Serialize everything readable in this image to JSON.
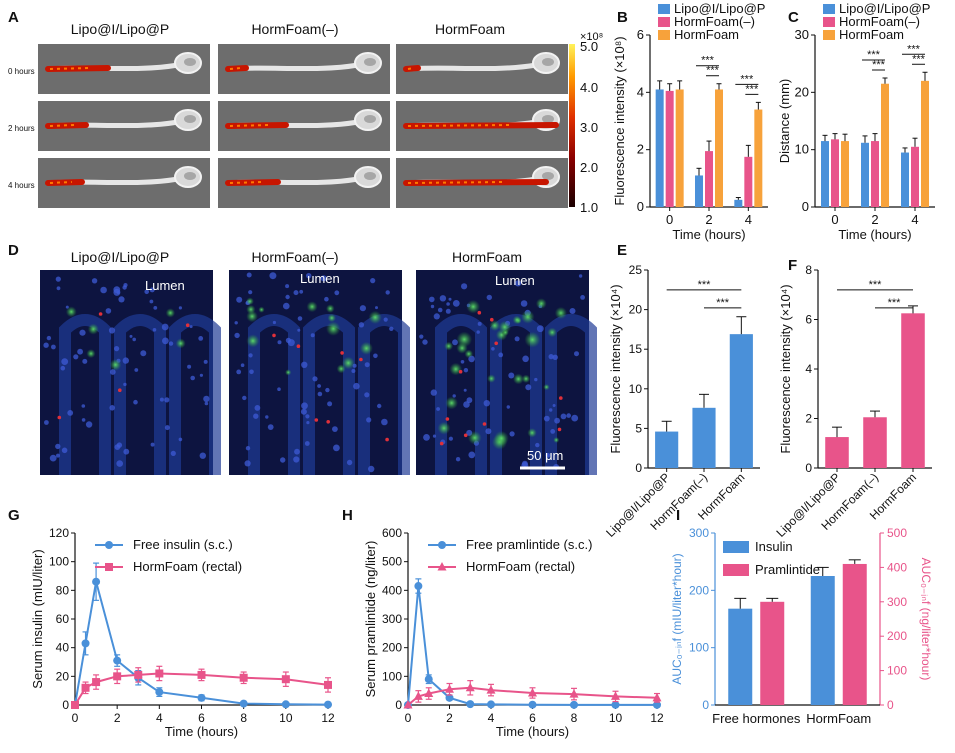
{
  "colors": {
    "blue": "#4a90d9",
    "pink": "#e8548a",
    "orange": "#f7a23b",
    "tissue": "#1f3b96",
    "axis": "#111111"
  },
  "panelA": {
    "label": "A",
    "columns": [
      "Lipo@I/Lipo@P",
      "HormFoam(–)",
      "HormFoam"
    ],
    "rows": [
      "0 hours",
      "2 hours",
      "4 hours"
    ],
    "colorbar": {
      "exponent": "×10⁸",
      "ticks": [
        "5.0",
        "4.0",
        "3.0",
        "2.0",
        "1.0"
      ]
    }
  },
  "panelD": {
    "label": "D",
    "columns": [
      "Lipo@I/Lipo@P",
      "HormFoam(–)",
      "HormFoam"
    ],
    "lumen": "Lumen",
    "scalebar": "50 μm"
  },
  "chart_data": [
    {
      "id": "B",
      "type": "bar",
      "label": "B",
      "categories": [
        "0",
        "2",
        "4"
      ],
      "series": [
        {
          "name": "Lipo@I/Lipo@P",
          "values": [
            4.1,
            1.1,
            0.25
          ],
          "errors": [
            0.3,
            0.25,
            0.08
          ]
        },
        {
          "name": "HormFoam(–)",
          "values": [
            4.05,
            1.95,
            1.75
          ],
          "errors": [
            0.25,
            0.35,
            0.4
          ]
        },
        {
          "name": "HormFoam",
          "values": [
            4.1,
            4.1,
            3.4
          ],
          "errors": [
            0.3,
            0.2,
            0.25
          ]
        }
      ],
      "xlabel": "Time (hours)",
      "ylabel": "Fluorescence intensity (×10⁸)",
      "ylim": [
        0,
        6
      ],
      "yticks": [
        0,
        2,
        4,
        6
      ],
      "yticklabels": [
        "0",
        "2",
        "4",
        "6"
      ],
      "significance": [
        "***",
        "***",
        "***",
        "***"
      ],
      "legend": "top-right"
    },
    {
      "id": "C",
      "type": "bar",
      "label": "C",
      "categories": [
        "0",
        "2",
        "4"
      ],
      "series": [
        {
          "name": "Lipo@I/Lipo@P",
          "values": [
            11.5,
            11.2,
            9.5
          ],
          "errors": [
            1.0,
            1.2,
            0.8
          ]
        },
        {
          "name": "HormFoam(–)",
          "values": [
            11.8,
            11.5,
            10.5
          ],
          "errors": [
            1.0,
            1.3,
            1.5
          ]
        },
        {
          "name": "HormFoam",
          "values": [
            11.5,
            21.5,
            22.0
          ],
          "errors": [
            1.2,
            1.0,
            1.5
          ]
        }
      ],
      "xlabel": "Time (hours)",
      "ylabel": "Distance (mm)",
      "ylim": [
        0,
        30
      ],
      "yticks": [
        0,
        10,
        20,
        30
      ],
      "yticklabels": [
        "0",
        "10",
        "20",
        "30"
      ],
      "significance": [
        "***",
        "***",
        "***",
        "***"
      ],
      "legend": "top-right"
    },
    {
      "id": "E",
      "type": "bar",
      "label": "E",
      "categories": [
        "Lipo@I/Lipo@P",
        "HormFoam(–)",
        "HormFoam"
      ],
      "values": [
        4.6,
        7.6,
        16.9
      ],
      "errors": [
        1.3,
        1.7,
        2.2
      ],
      "xlabel": "",
      "ylabel": "Fluorescence intensity (×10⁴)",
      "ylim": [
        0,
        25
      ],
      "yticks": [
        0,
        5,
        10,
        15,
        20,
        25
      ],
      "yticklabels": [
        "0",
        "5",
        "10",
        "15",
        "20",
        "25"
      ],
      "significance": [
        "***",
        "***"
      ]
    },
    {
      "id": "F",
      "type": "bar",
      "label": "F",
      "categories": [
        "Lipo@I/Lipo@P",
        "HormFoam(–)",
        "HormFoam"
      ],
      "values": [
        1.25,
        2.05,
        6.25
      ],
      "errors": [
        0.4,
        0.25,
        0.3
      ],
      "xlabel": "",
      "ylabel": "Fluorescence intensity (×10⁴)",
      "ylim": [
        0,
        8
      ],
      "yticks": [
        0,
        2,
        4,
        6,
        8
      ],
      "yticklabels": [
        "0",
        "2",
        "4",
        "6",
        "8"
      ],
      "significance": [
        "***",
        "***"
      ]
    },
    {
      "id": "G",
      "type": "line",
      "label": "G",
      "series": [
        {
          "name": "Free insulin (s.c.)",
          "marker": "circle",
          "x": [
            0,
            0.5,
            1,
            2,
            3,
            4,
            6,
            8,
            10,
            12
          ],
          "y": [
            0,
            43,
            86,
            31,
            19,
            9,
            5,
            1,
            0.5,
            0.3
          ],
          "errors": [
            0,
            8,
            13,
            4,
            5,
            3,
            2,
            1,
            0.5,
            0.5
          ]
        },
        {
          "name": "HormFoam (rectal)",
          "marker": "square",
          "x": [
            0,
            0.5,
            1,
            2,
            3,
            4,
            6,
            8,
            10,
            12
          ],
          "y": [
            0,
            12,
            16,
            20,
            21,
            22,
            21,
            19,
            18,
            14
          ],
          "errors": [
            0,
            4,
            5,
            5,
            5,
            5,
            4,
            4,
            5,
            5
          ]
        }
      ],
      "xlabel": "Time (hours)",
      "ylabel": "Serum insulin (mIU/liter)",
      "xlim": [
        0,
        12
      ],
      "xticks": [
        0,
        2,
        4,
        6,
        8,
        10,
        12
      ],
      "xticklabels": [
        "0",
        "2",
        "4",
        "6",
        "8",
        "10",
        "12"
      ],
      "ylim": [
        0,
        120
      ],
      "yticks": [
        0,
        20,
        40,
        60,
        80,
        100,
        120
      ],
      "yticklabels": [
        "0",
        "20",
        "40",
        "60",
        "80",
        "100",
        "120"
      ],
      "legend": "top-right"
    },
    {
      "id": "H",
      "type": "line",
      "label": "H",
      "series": [
        {
          "name": "Free pramlintide (s.c.)",
          "marker": "circle",
          "x": [
            0,
            0.5,
            1,
            2,
            3,
            4,
            6,
            8,
            10,
            12
          ],
          "y": [
            0,
            415,
            90,
            25,
            3,
            2,
            1,
            0.5,
            0.5,
            0.5
          ],
          "errors": [
            0,
            25,
            15,
            8,
            3,
            2,
            1,
            1,
            1,
            1
          ]
        },
        {
          "name": "HormFoam (rectal)",
          "marker": "triangle",
          "x": [
            0,
            0.5,
            1,
            2,
            3,
            4,
            6,
            8,
            10,
            12
          ],
          "y": [
            0,
            30,
            40,
            55,
            60,
            52,
            42,
            38,
            30,
            25
          ],
          "errors": [
            0,
            20,
            20,
            20,
            25,
            20,
            18,
            20,
            18,
            15
          ]
        }
      ],
      "xlabel": "Time (hours)",
      "ylabel": "Serum pramlintide (ng/liter)",
      "xlim": [
        0,
        12
      ],
      "xticks": [
        0,
        2,
        4,
        6,
        8,
        10,
        12
      ],
      "xticklabels": [
        "0",
        "2",
        "4",
        "6",
        "8",
        "10",
        "12"
      ],
      "ylim": [
        0,
        600
      ],
      "yticks": [
        0,
        100,
        200,
        300,
        400,
        500,
        600
      ],
      "yticklabels": [
        "0",
        "100",
        "200",
        "300",
        "400",
        "500",
        "600"
      ],
      "legend": "top-right"
    },
    {
      "id": "I",
      "type": "bar",
      "label": "I",
      "categories": [
        "Free hormones",
        "HormFoam"
      ],
      "series": [
        {
          "name": "Insulin",
          "axis": "left",
          "values": [
            168,
            225
          ],
          "errors": [
            18,
            15
          ]
        },
        {
          "name": "Pramlintide",
          "axis": "right",
          "values": [
            300,
            410
          ],
          "errors": [
            10,
            12
          ]
        }
      ],
      "ylabel": "AUC₀₋ᵢₙf (mIU/liter*hour)",
      "ylabel_right": "AUC₀₋ᵢₙf (ng/liter*hour)",
      "ylim": [
        0,
        300
      ],
      "yticks": [
        0,
        100,
        200,
        300
      ],
      "yticklabels": [
        "0",
        "100",
        "200",
        "300"
      ],
      "ylim_right": [
        0,
        500
      ],
      "yticks_right": [
        0,
        100,
        200,
        300,
        400,
        500
      ],
      "yticklabels_right": [
        "0",
        "100",
        "200",
        "300",
        "400",
        "500"
      ],
      "legend": "top-left"
    }
  ]
}
